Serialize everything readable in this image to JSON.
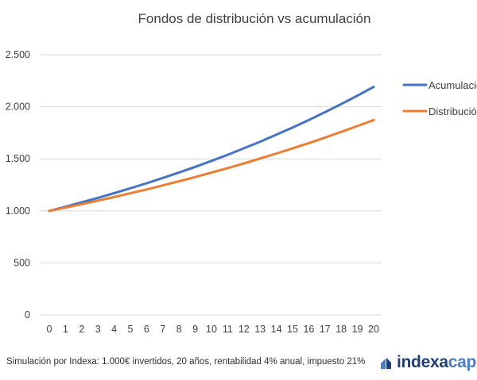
{
  "chart_data": {
    "type": "line",
    "title": "Fondos de distribución vs acumulación",
    "x": [
      0,
      1,
      2,
      3,
      4,
      5,
      6,
      7,
      8,
      9,
      10,
      11,
      12,
      13,
      14,
      15,
      16,
      17,
      18,
      19,
      20
    ],
    "x_tick_labels": [
      "0",
      "1",
      "2",
      "3",
      "4",
      "5",
      "6",
      "7",
      "8",
      "9",
      "10",
      "11",
      "12",
      "13",
      "14",
      "15",
      "16",
      "17",
      "18",
      "19",
      "20"
    ],
    "ylim": [
      0,
      2500
    ],
    "y_ticks": [
      0,
      500,
      1000,
      1500,
      2000,
      2500
    ],
    "y_tick_labels": [
      "0",
      "500",
      "1.000",
      "1.500",
      "2.000",
      "2.500"
    ],
    "grid": true,
    "legend_position": "right",
    "series": [
      {
        "name": "Acumulación",
        "color": "#4472c4",
        "values": [
          1000,
          1040,
          1082,
          1125,
          1170,
          1217,
          1265,
          1316,
          1369,
          1423,
          1480,
          1539,
          1601,
          1665,
          1732,
          1801,
          1873,
          1948,
          2026,
          2107,
          2191
        ]
      },
      {
        "name": "Distribución",
        "color": "#ed7d31",
        "values": [
          1000,
          1032,
          1064,
          1098,
          1133,
          1169,
          1206,
          1245,
          1284,
          1325,
          1368,
          1411,
          1456,
          1503,
          1551,
          1600,
          1651,
          1704,
          1759,
          1815,
          1873
        ]
      }
    ]
  },
  "legend_labels": [
    "Acumulación",
    "Distribución"
  ],
  "footnote": "Simulación por Indexa: 1.000€ invertidos, 20 años, rentabilidad 4% anual, impuesto 21%",
  "brand": {
    "part1": "indexa",
    "part2": "capi",
    "primary_color": "#1f3f73",
    "accent_color": "#4a7cc0"
  }
}
